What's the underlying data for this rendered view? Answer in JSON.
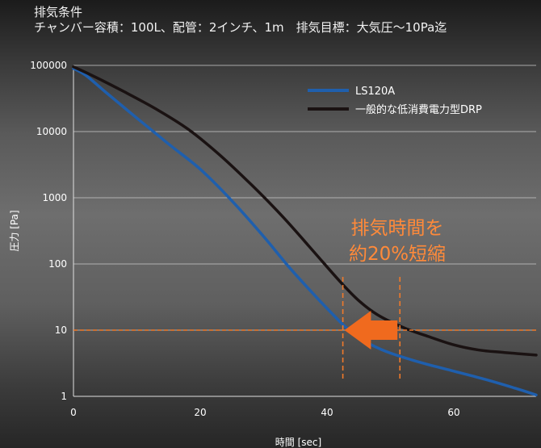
{
  "header": {
    "line1": "排気条件",
    "line2": "チャンバー容積：100L、配管：2インチ、1m　排気目標：大気圧〜10Pa迄"
  },
  "colors": {
    "ls120a": "#1f5fad",
    "drp": "#1a1212",
    "target_line": "#f07a2a",
    "arrow": "#f06a1e",
    "annotation": "#ff8a3a",
    "gridline": "#bdbdbd"
  },
  "chart_data": {
    "type": "line",
    "xlabel": "時間 [sec]",
    "ylabel": "圧力 [Pa]",
    "xlim": [
      0,
      73
    ],
    "ylim": [
      1,
      100000
    ],
    "yscale": "log",
    "grid": true,
    "legend_position": "top-right",
    "x_ticks": [
      0,
      20,
      40,
      60
    ],
    "y_ticks": [
      {
        "value": 100000,
        "label": "100000"
      },
      {
        "value": 10000,
        "label": "10000"
      },
      {
        "value": 1000,
        "label": "1000"
      },
      {
        "value": 100,
        "label": "100"
      },
      {
        "value": 10,
        "label": "10"
      },
      {
        "value": 1,
        "label": "1"
      }
    ],
    "series": [
      {
        "name": "LS120A",
        "x": [
          0,
          2,
          5,
          10,
          15,
          20,
          25,
          30,
          34,
          38,
          41,
          43,
          45,
          47,
          50,
          55,
          60,
          65,
          70,
          73
        ],
        "y": [
          90000,
          70000,
          40000,
          16000,
          6500,
          2700,
          900,
          260,
          90,
          34,
          17,
          11,
          8,
          6,
          4.5,
          3.2,
          2.4,
          1.8,
          1.3,
          1.05
        ]
      },
      {
        "name": "一般的な低消費電力型DRP",
        "x": [
          0,
          3,
          8,
          13,
          18,
          23,
          28,
          33,
          38,
          42,
          45,
          48,
          52,
          56,
          60,
          64,
          68,
          73
        ],
        "y": [
          95000,
          70000,
          40000,
          22000,
          11000,
          4500,
          1600,
          520,
          150,
          55,
          28,
          17,
          11,
          8,
          6,
          5,
          4.6,
          4.2
        ]
      }
    ],
    "target": {
      "y": 10
    },
    "markers": [
      {
        "x": 42.5
      },
      {
        "x": 51.5
      }
    ],
    "annotation": [
      "排気時間を",
      "約20%短縮"
    ]
  }
}
